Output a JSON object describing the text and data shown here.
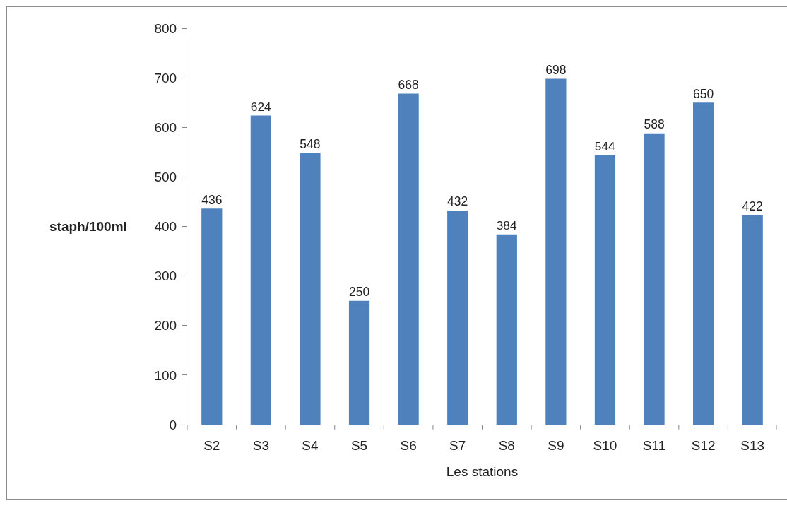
{
  "chart_data": {
    "type": "bar",
    "xlabel": "Les stations",
    "ylabel": "staph/100ml",
    "categories": [
      "S2",
      "S3",
      "S4",
      "S5",
      "S6",
      "S7",
      "S8",
      "S9",
      "S10",
      "S11",
      "S12",
      "S13"
    ],
    "values": [
      436,
      624,
      548,
      250,
      668,
      432,
      384,
      698,
      544,
      588,
      650,
      422
    ],
    "color": "#4f81bd",
    "ylim": [
      0,
      800
    ],
    "yticks": [
      0,
      100,
      200,
      300,
      400,
      500,
      600,
      700,
      800
    ],
    "data_labels": true,
    "grid": false,
    "legend": false
  }
}
